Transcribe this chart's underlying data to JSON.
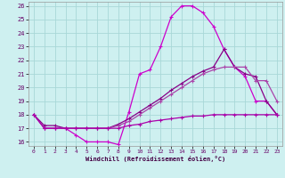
{
  "xlabel": "Windchill (Refroidissement éolien,°C)",
  "xlim": [
    -0.5,
    23.5
  ],
  "ylim": [
    15.7,
    26.3
  ],
  "xticks": [
    0,
    1,
    2,
    3,
    4,
    5,
    6,
    7,
    8,
    9,
    10,
    11,
    12,
    13,
    14,
    15,
    16,
    17,
    18,
    19,
    20,
    21,
    22,
    23
  ],
  "yticks": [
    16,
    17,
    18,
    19,
    20,
    21,
    22,
    23,
    24,
    25,
    26
  ],
  "background_color": "#cef0f0",
  "grid_color": "#a8d8d8",
  "hours": [
    0,
    1,
    2,
    3,
    4,
    5,
    6,
    7,
    8,
    9,
    10,
    11,
    12,
    13,
    14,
    15,
    16,
    17,
    18,
    19,
    20,
    21,
    22,
    23
  ],
  "curve1": [
    18.0,
    17.0,
    17.0,
    17.0,
    16.5,
    16.0,
    16.0,
    16.0,
    15.8,
    18.2,
    21.0,
    21.3,
    23.0,
    25.2,
    26.0,
    26.0,
    25.5,
    24.5,
    22.8,
    21.5,
    20.8,
    19.0,
    19.0,
    18.0
  ],
  "curve2": [
    18.0,
    17.2,
    17.2,
    17.0,
    17.0,
    17.0,
    17.0,
    17.0,
    17.3,
    17.7,
    18.2,
    18.7,
    19.2,
    19.8,
    20.3,
    20.8,
    21.2,
    21.5,
    22.8,
    21.5,
    21.0,
    20.8,
    19.0,
    18.0
  ],
  "curve3": [
    18.0,
    17.0,
    17.0,
    17.0,
    17.0,
    17.0,
    17.0,
    17.0,
    17.2,
    17.5,
    18.0,
    18.5,
    19.0,
    19.5,
    20.0,
    20.5,
    21.0,
    21.3,
    21.5,
    21.5,
    21.5,
    20.5,
    20.5,
    19.0
  ],
  "curve4": [
    18.0,
    17.0,
    17.0,
    17.0,
    17.0,
    17.0,
    17.0,
    17.0,
    17.0,
    17.2,
    17.3,
    17.5,
    17.6,
    17.7,
    17.8,
    17.9,
    17.9,
    18.0,
    18.0,
    18.0,
    18.0,
    18.0,
    18.0,
    18.0
  ],
  "line_colors": [
    "#cc00cc",
    "#880088",
    "#aa44aa",
    "#aa00aa"
  ],
  "tick_color": "#660066",
  "label_color": "#440044"
}
